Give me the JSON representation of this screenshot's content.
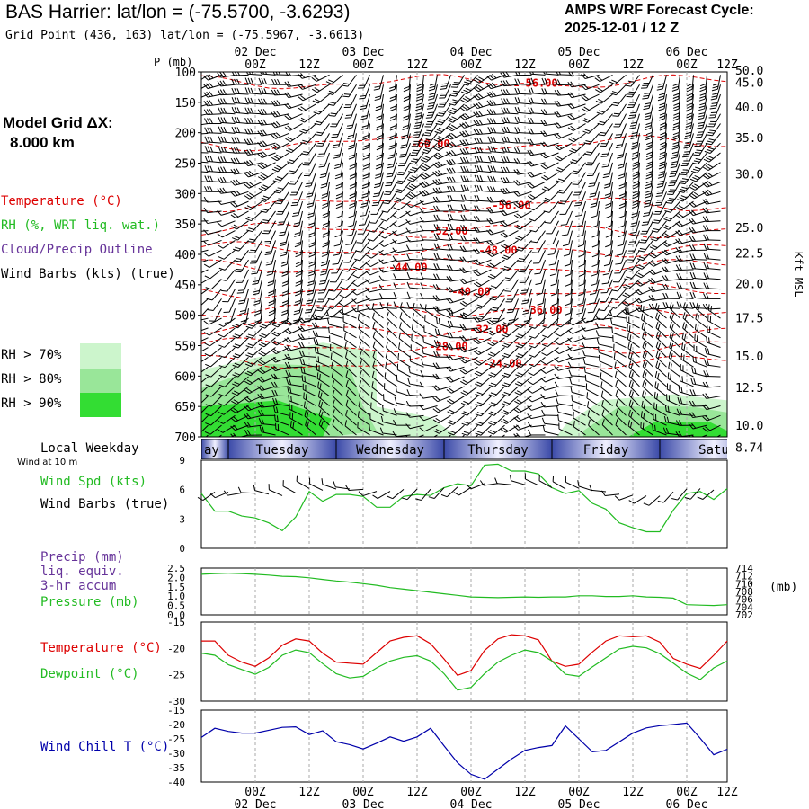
{
  "header": {
    "title": "BAS Harrier:  lat/lon = (-75.5700, -3.6293)",
    "subtitle": "Grid Point (436, 163) lat/lon = (-75.5967, -3.6613)",
    "cycle_line1": "AMPS WRF Forecast Cycle:",
    "cycle_line2": "2025-12-01 / 12  Z"
  },
  "model_grid": {
    "line1": "Model Grid ΔX:",
    "line2": "8.000 km"
  },
  "legend": {
    "temperature": "Temperature (°C)",
    "rh": "RH (%, WRT liq. wat.)",
    "cloud": "Cloud/Precip Outline",
    "wind": "Wind Barbs (kts) (true)",
    "rh70": "RH > 70%",
    "rh80": "RH > 80%",
    "rh90": "RH > 90%"
  },
  "colors": {
    "temperature": "#dd0000",
    "rh": "#22bb22",
    "cloud": "#663399",
    "wind_chill": "#0000aa",
    "rh70": "#ccf5cc",
    "rh80": "#99e699",
    "rh90": "#33dd33",
    "grid": "#aaaaaa"
  },
  "chart_data": [
    {
      "name": "pressure-time cross-section",
      "type": "heatmap",
      "ylabel": "P (mb)",
      "y2label": "Kft MSL",
      "x_axis": {
        "range_hours": [
          -9,
          108
        ],
        "top_ticks": [
          "00Z",
          "12Z",
          "00Z",
          "12Z",
          "00Z",
          "12Z",
          "00Z",
          "12Z",
          "00Z",
          "12Z"
        ],
        "top_tick_hours": [
          3,
          15,
          27,
          39,
          51,
          63,
          75,
          87,
          99,
          111
        ],
        "date_labels": [
          "02 Dec",
          "03 Dec",
          "04 Dec",
          "05 Dec",
          "06 Dec"
        ],
        "date_label_hours": [
          3,
          27,
          51,
          75,
          99
        ]
      },
      "pressure_ticks": [
        100,
        150,
        200,
        250,
        300,
        350,
        400,
        450,
        500,
        550,
        600,
        650,
        700
      ],
      "pressure_range": [
        100,
        700
      ],
      "height_ticks_kft": [
        "50.0",
        "45.0",
        "40.0",
        "35.0",
        "30.0",
        "25.0",
        "22.5",
        "20.0",
        "17.5",
        "15.0",
        "12.5",
        "10.0",
        "8.74"
      ],
      "height_tick_pressures": [
        97,
        117,
        158,
        208,
        268,
        356,
        398,
        448,
        504,
        567,
        619,
        681,
        717
      ],
      "temperature_labels": [
        {
          "text": "-56.00",
          "p": 117,
          "h": 66
        },
        {
          "text": "-60.00",
          "p": 217,
          "h": 42
        },
        {
          "text": "-56.00",
          "p": 318,
          "h": 60
        },
        {
          "text": "-52.00",
          "p": 360,
          "h": 46
        },
        {
          "text": "-48.00",
          "p": 392,
          "h": 57
        },
        {
          "text": "-44.00",
          "p": 420,
          "h": 37
        },
        {
          "text": "-40.00",
          "p": 460,
          "h": 51
        },
        {
          "text": "-36.00",
          "p": 490,
          "h": 67
        },
        {
          "text": "-32.00",
          "p": 522,
          "h": 55
        },
        {
          "text": "-28.00",
          "p": 550,
          "h": 46
        },
        {
          "text": "-24.00",
          "p": 578,
          "h": 58
        }
      ],
      "day_bar": [
        "ay",
        "Tuesday",
        "Wednesday",
        "Thursday",
        "Friday",
        "Satu"
      ],
      "day_bar_local_label": "Local Weekday",
      "wind_10m_label": "Wind at 10 m"
    },
    {
      "name": "10 m wind speed",
      "type": "line",
      "legend": [
        "Wind Spd (kts)",
        "Wind Barbs (true)"
      ],
      "ylim": [
        0,
        9
      ],
      "yticks": [
        "0",
        "3",
        "6",
        "9"
      ],
      "x_hours": [
        -9,
        -6,
        -3,
        0,
        3,
        6,
        9,
        12,
        15,
        18,
        21,
        24,
        27,
        30,
        33,
        36,
        39,
        42,
        45,
        48,
        51,
        54,
        57,
        60,
        63,
        66,
        69,
        72,
        75,
        78,
        81,
        84,
        87,
        90,
        93,
        96,
        99,
        102,
        105,
        108
      ],
      "series": [
        {
          "name": "Wind Spd (kts)",
          "color": "#22bb22",
          "values": [
            5.6,
            3.8,
            3.8,
            3.3,
            3.1,
            2.6,
            1.8,
            3.2,
            5.8,
            4.8,
            5.5,
            5.5,
            5.3,
            4.2,
            4.2,
            5.3,
            5.5,
            5.4,
            6.2,
            6.6,
            6.4,
            8.5,
            8.6,
            7.9,
            7.9,
            7.6,
            6.2,
            5.6,
            5.9,
            4.6,
            4.0,
            2.6,
            2.1,
            1.7,
            1.7,
            3.9,
            5.6,
            5.8,
            5.0,
            6.1
          ]
        }
      ]
    },
    {
      "name": "precip and surface pressure",
      "type": "line",
      "legend": [
        "Precip (mm)",
        "liq. equiv.",
        "3-hr accum",
        "Pressure (mb)"
      ],
      "ylim": [
        0,
        2.5
      ],
      "yticks": [
        "0.0",
        "0.5",
        "1.0",
        "1.5",
        "2.0",
        "2.5"
      ],
      "y2lim": [
        702,
        714
      ],
      "y2ticks": [
        "702",
        "704",
        "706",
        "708",
        "710",
        "712",
        "714"
      ],
      "y2label": "(mb)",
      "x_hours": [
        -9,
        -6,
        -3,
        0,
        3,
        6,
        9,
        12,
        15,
        18,
        21,
        24,
        27,
        30,
        33,
        36,
        39,
        42,
        45,
        48,
        51,
        54,
        57,
        60,
        63,
        66,
        69,
        72,
        75,
        78,
        81,
        84,
        87,
        90,
        93,
        96,
        99,
        102,
        105,
        108
      ],
      "series": [
        {
          "name": "Pressure (mb)",
          "color": "#22bb22",
          "axis": "y2",
          "values": [
            712.4,
            712.6,
            712.7,
            712.6,
            712.4,
            712.2,
            711.9,
            711.8,
            711.5,
            711.1,
            710.7,
            710.4,
            710.0,
            709.6,
            709.0,
            708.6,
            708.2,
            707.8,
            707.4,
            707.0,
            706.6,
            706.5,
            706.4,
            706.5,
            706.6,
            706.5,
            706.6,
            706.6,
            706.9,
            706.9,
            706.7,
            706.7,
            706.9,
            706.6,
            706.5,
            706.3,
            704.6,
            704.5,
            704.4,
            704.6
          ]
        }
      ]
    },
    {
      "name": "temperature and dewpoint",
      "type": "line",
      "legend": [
        "Temperature (°C)",
        "Dewpoint (°C)"
      ],
      "ylim": [
        -30,
        -15
      ],
      "yticks": [
        "-30",
        "-25",
        "-20",
        "-15"
      ],
      "x_hours": [
        -9,
        -6,
        -3,
        0,
        3,
        6,
        9,
        12,
        15,
        18,
        21,
        24,
        27,
        30,
        33,
        36,
        39,
        42,
        45,
        48,
        51,
        54,
        57,
        60,
        63,
        66,
        69,
        72,
        75,
        78,
        81,
        84,
        87,
        90,
        93,
        96,
        99,
        102,
        105,
        108
      ],
      "series": [
        {
          "name": "Temperature (°C)",
          "color": "#dd0000",
          "values": [
            -18.6,
            -18.6,
            -21.3,
            -22.6,
            -23.4,
            -21.8,
            -19.4,
            -18.2,
            -18.6,
            -20.9,
            -22.6,
            -22.8,
            -23.0,
            -20.8,
            -18.6,
            -17.9,
            -17.6,
            -19.1,
            -22.0,
            -25.1,
            -24.2,
            -20.4,
            -18.2,
            -17.4,
            -17.6,
            -18.4,
            -22.4,
            -23.4,
            -23.0,
            -20.7,
            -18.6,
            -17.6,
            -17.8,
            -17.6,
            -18.8,
            -21.9,
            -23.0,
            -23.8,
            -21.3,
            -18.6
          ]
        },
        {
          "name": "Dewpoint (°C)",
          "color": "#22bb22",
          "values": [
            -20.9,
            -21.3,
            -23.1,
            -24.0,
            -24.9,
            -23.6,
            -21.3,
            -20.3,
            -20.8,
            -22.9,
            -24.8,
            -25.6,
            -25.3,
            -23.7,
            -22.4,
            -21.7,
            -21.4,
            -22.4,
            -24.8,
            -27.9,
            -27.4,
            -24.8,
            -22.6,
            -21.3,
            -20.3,
            -20.8,
            -22.4,
            -24.9,
            -25.3,
            -23.5,
            -21.8,
            -20.1,
            -19.6,
            -19.9,
            -21.0,
            -22.8,
            -24.7,
            -25.9,
            -23.7,
            -22.4
          ]
        }
      ]
    },
    {
      "name": "wind chill",
      "type": "line",
      "legend": [
        "Wind Chill T (°C)"
      ],
      "ylim": [
        -40,
        -15
      ],
      "yticks": [
        "-40",
        "-35",
        "-30",
        "-25",
        "-20",
        "-15"
      ],
      "x_hours": [
        -9,
        -6,
        -3,
        0,
        3,
        6,
        9,
        12,
        15,
        18,
        21,
        24,
        27,
        30,
        33,
        36,
        39,
        42,
        45,
        48,
        51,
        54,
        57,
        60,
        63,
        66,
        69,
        72,
        75,
        78,
        81,
        84,
        87,
        90,
        93,
        96,
        99,
        102,
        105,
        108
      ],
      "series": [
        {
          "name": "Wind Chill T (°C)",
          "color": "#0000aa",
          "values": [
            -24.5,
            -21.3,
            -22.4,
            -23.0,
            -23.0,
            -22.0,
            -21.0,
            -20.8,
            -23.5,
            -22.2,
            -26.0,
            -27.0,
            -28.5,
            -26.5,
            -24.3,
            -25.8,
            -24.3,
            -21.3,
            -27.4,
            -33.3,
            -37.3,
            -39.0,
            -35.5,
            -32.0,
            -29.0,
            -28.0,
            -27.3,
            -20.5,
            -25.0,
            -29.5,
            -29.0,
            -26.0,
            -23.0,
            -21.2,
            -20.4,
            -20.0,
            -19.5,
            -24.8,
            -30.5,
            -28.6
          ]
        }
      ]
    }
  ]
}
